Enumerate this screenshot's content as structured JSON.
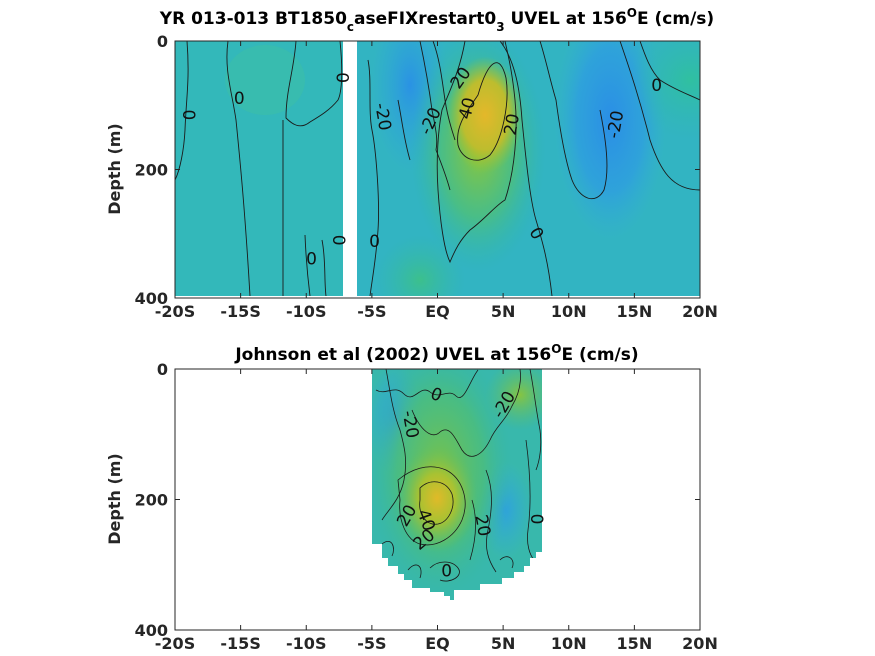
{
  "chart_data": [
    {
      "type": "heatmap",
      "title": {
        "main": "YR 013-013 BT1850",
        "sub": "c",
        "mid": "aseFIXrestart0",
        "sub2": "3",
        "tail": " UVEL at 156",
        "sup": "O",
        "end": "E (cm/s)"
      },
      "ylabel": "Depth (m)",
      "xlim": [
        -20,
        20
      ],
      "ylim": [
        0,
        400
      ],
      "y_reversed": true,
      "xticks": [
        -20,
        -15,
        -10,
        -5,
        0,
        5,
        10,
        15,
        20
      ],
      "xticklabels": [
        "-20S",
        "-15S",
        "-10S",
        "-5S",
        "EQ",
        "5N",
        "10N",
        "15N",
        "20N"
      ],
      "yticks": [
        0,
        200,
        400
      ],
      "yticklabels": [
        "0",
        "200",
        "400"
      ],
      "contour_interval": 20,
      "contour_labels": [
        {
          "text": "0",
          "lat": -18.8,
          "depth": 115,
          "angle": -90
        },
        {
          "text": "0",
          "lat": -15.1,
          "depth": 90,
          "angle": 0
        },
        {
          "text": "0",
          "lat": -7.3,
          "depth": 57,
          "angle": 90
        },
        {
          "text": "0",
          "lat": -7.6,
          "depth": 310,
          "angle": 90
        },
        {
          "text": "0",
          "lat": -9.6,
          "depth": 340,
          "angle": 0
        },
        {
          "text": "0",
          "lat": -4.8,
          "depth": 313,
          "angle": 0
        },
        {
          "text": "-20",
          "lat": -4.2,
          "depth": 118,
          "angle": 80
        },
        {
          "text": "-20",
          "lat": -0.5,
          "depth": 125,
          "angle": -65
        },
        {
          "text": "20",
          "lat": 1.8,
          "depth": 58,
          "angle": -55
        },
        {
          "text": "40",
          "lat": 2.3,
          "depth": 105,
          "angle": -75
        },
        {
          "text": "20",
          "lat": 5.7,
          "depth": 130,
          "angle": -80
        },
        {
          "text": "0",
          "lat": 7.5,
          "depth": 300,
          "angle": 60
        },
        {
          "text": "-20",
          "lat": 13.6,
          "depth": 130,
          "angle": -80
        },
        {
          "text": "0",
          "lat": 16.7,
          "depth": 70,
          "angle": 0
        }
      ]
    },
    {
      "type": "heatmap",
      "title": {
        "main": "Johnson et al (2002) UVEL at 156",
        "sup": "O",
        "end": "E (cm/s)"
      },
      "ylabel": "Depth (m)",
      "xlim": [
        -20,
        20
      ],
      "ylim": [
        0,
        400
      ],
      "y_reversed": true,
      "xticks": [
        -20,
        -15,
        -10,
        -5,
        0,
        5,
        10,
        15,
        20
      ],
      "xticklabels": [
        "-20S",
        "-15S",
        "-10S",
        "-5S",
        "EQ",
        "5N",
        "10N",
        "15N",
        "20N"
      ],
      "yticks": [
        0,
        200,
        400
      ],
      "yticklabels": [
        "0",
        "200",
        "400"
      ],
      "data_extent_lat": [
        -5,
        8
      ],
      "contour_interval": 20,
      "contour_labels": [
        {
          "text": "0",
          "lat": -0.1,
          "depth": 40,
          "angle": 20
        },
        {
          "text": "-20",
          "lat": -2.1,
          "depth": 85,
          "angle": 80
        },
        {
          "text": "-20",
          "lat": 5.1,
          "depth": 55,
          "angle": -60
        },
        {
          "text": "20",
          "lat": -2.3,
          "depth": 225,
          "angle": -60
        },
        {
          "text": "40",
          "lat": -0.9,
          "depth": 232,
          "angle": 70
        },
        {
          "text": "20",
          "lat": -1.0,
          "depth": 262,
          "angle": -40
        },
        {
          "text": "20",
          "lat": 3.4,
          "depth": 240,
          "angle": 80
        },
        {
          "text": "0",
          "lat": 7.5,
          "depth": 230,
          "angle": 90
        },
        {
          "text": "0",
          "lat": 0.7,
          "depth": 310,
          "angle": 0
        }
      ]
    }
  ]
}
